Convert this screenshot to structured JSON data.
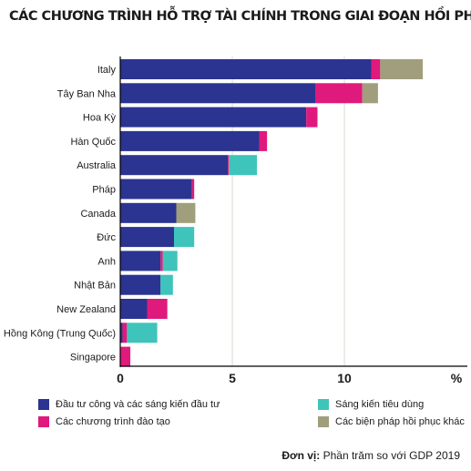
{
  "title": "CÁC CHƯƠNG TRÌNH HỖ TRỢ TÀI CHÍNH TRONG GIAI ĐOẠN HỒI PHỤC",
  "unit_label": "Đơn vị:",
  "unit_text": "Phần trăm so với GDP 2019",
  "colors": {
    "public_investment": "#2b3490",
    "training": "#e0197d",
    "consumer": "#3ec4bb",
    "recovery": "#a09e7c"
  },
  "chart_data": {
    "type": "bar",
    "orientation": "horizontal",
    "stacked": true,
    "title": "CÁC CHƯƠNG TRÌNH HỖ TRỢ TÀI CHÍNH TRONG GIAI ĐOẠN HỒI PHỤC",
    "categories": [
      "Italy",
      "Tây Ban Nha",
      "Hoa Kỳ",
      "Hàn Quốc",
      "Australia",
      "Pháp",
      "Canada",
      "Đức",
      "Anh",
      "Nhật Bản",
      "New Zealand",
      "Hồng Kông (Trung Quốc)",
      "Singapore"
    ],
    "series": [
      {
        "name": "Đầu tư công và các sáng kiến đầu tư",
        "color_key": "public_investment",
        "values": [
          11.2,
          8.7,
          8.3,
          6.2,
          4.8,
          3.2,
          2.5,
          2.4,
          1.8,
          1.8,
          1.2,
          0.1,
          0.0
        ]
      },
      {
        "name": "Các chương trình đào tạo",
        "color_key": "training",
        "values": [
          0.4,
          2.1,
          0.5,
          0.35,
          0.05,
          0.1,
          0.0,
          0.0,
          0.1,
          0.0,
          0.9,
          0.2,
          0.45
        ]
      },
      {
        "name": "Sáng kiến tiêu dùng",
        "color_key": "consumer",
        "values": [
          0.0,
          0.0,
          0.0,
          0.0,
          1.25,
          0.0,
          0.0,
          0.9,
          0.65,
          0.55,
          0.0,
          1.35,
          0.0
        ]
      },
      {
        "name": "Các biện pháp hồi phục khác",
        "color_key": "recovery",
        "values": [
          1.9,
          0.7,
          0.0,
          0.0,
          0.0,
          0.0,
          0.85,
          0.0,
          0.0,
          0.0,
          0.0,
          0.0,
          0.0
        ]
      }
    ],
    "x_ticks": [
      "0",
      "5",
      "10",
      "%"
    ],
    "xlim": [
      0,
      15
    ],
    "grid": true,
    "legend_position": "bottom"
  }
}
